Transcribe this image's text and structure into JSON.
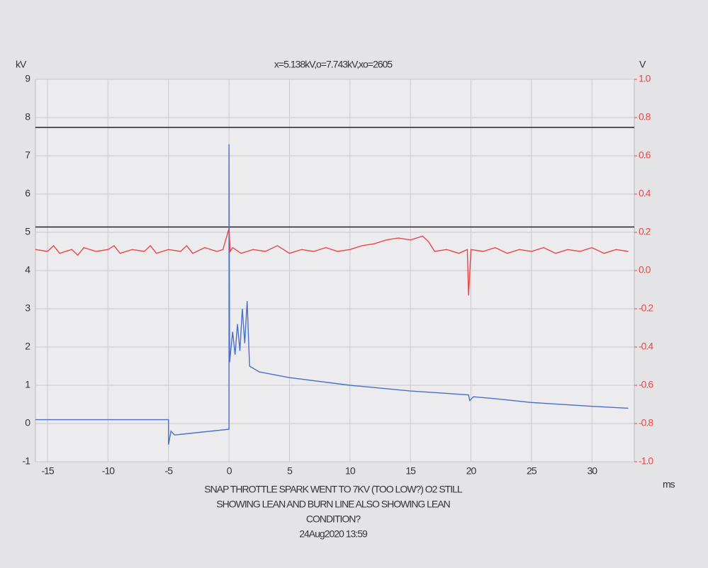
{
  "chart_data": {
    "type": "line",
    "title": "x=5.138kV,o=7.743kV,xo=2605",
    "x_axis_label": "ms",
    "y_axis_label": "kV",
    "y2_axis_label": "V",
    "notes": [
      "SNAP THROTTLE SPARK WENT TO 7KV (TOO LOW?) O2 STILL",
      "SHOWING LEAN AND BURN LINE ALSO SHOWING LEAN",
      "CONDITION?",
      "24Aug2020 13:59"
    ],
    "xlim": [
      -16,
      33.5
    ],
    "xticks": [
      -15,
      -10,
      -5,
      0,
      5,
      10,
      15,
      20,
      25,
      30
    ],
    "ylim": [
      -1,
      9
    ],
    "yticks": [
      -1,
      0,
      1,
      2,
      3,
      4,
      5,
      6,
      7,
      8,
      9
    ],
    "y2lim": [
      -1,
      1
    ],
    "y2ticks": [
      {
        "value": -1,
        "label": "-1.0"
      },
      -0.8,
      -0.6,
      -0.4,
      -0.2,
      {
        "value": 0,
        "label": "0.0"
      },
      0.2,
      0.4,
      0.6,
      0.8,
      {
        "value": 1,
        "label": "1.0"
      }
    ],
    "y2_color": "#e8474a",
    "grid": true,
    "cursors": [
      7.743,
      5.138
    ],
    "cursor_color": "#222222",
    "series": [
      {
        "color": "#4a6fc9",
        "x": [
          -16,
          -5,
          -5,
          -4.8,
          -4.5,
          0,
          0,
          0.05,
          0.3,
          0.5,
          0.7,
          0.9,
          1.1,
          1.3,
          1.5,
          1.7,
          2.5,
          5,
          10,
          15,
          19.8,
          19.9,
          20.2,
          22,
          25,
          30,
          33
        ],
        "values": [
          0.1,
          0.1,
          -0.55,
          -0.2,
          -0.3,
          -0.15,
          7.3,
          1.6,
          2.4,
          1.8,
          2.6,
          1.9,
          3.0,
          2.1,
          3.2,
          1.5,
          1.35,
          1.2,
          1.0,
          0.85,
          0.75,
          0.6,
          0.7,
          0.65,
          0.55,
          0.45,
          0.4
        ]
      },
      {
        "color": "#e8474a",
        "axis": "y2",
        "x": [
          -16,
          -15,
          -14.5,
          -14,
          -13,
          -12.5,
          -12,
          -11,
          -10,
          -9.5,
          -9,
          -8,
          -7,
          -6.5,
          -6,
          -5,
          -4,
          -3.5,
          -3,
          -2,
          -1,
          -0.5,
          0,
          0.1,
          0.3,
          1,
          2,
          3,
          4,
          5,
          6,
          7,
          8,
          9,
          10,
          11,
          12,
          13,
          14,
          15,
          16,
          16.5,
          17,
          18,
          19,
          19.7,
          19.8,
          20,
          21,
          22,
          23,
          24,
          25,
          26,
          27,
          28,
          29,
          30,
          31,
          32,
          33
        ],
        "values": [
          0.11,
          0.1,
          0.13,
          0.09,
          0.11,
          0.08,
          0.12,
          0.1,
          0.11,
          0.13,
          0.09,
          0.11,
          0.1,
          0.13,
          0.09,
          0.11,
          0.1,
          0.13,
          0.09,
          0.12,
          0.1,
          0.11,
          0.22,
          0.1,
          0.12,
          0.09,
          0.11,
          0.1,
          0.13,
          0.09,
          0.11,
          0.1,
          0.12,
          0.1,
          0.11,
          0.13,
          0.14,
          0.16,
          0.17,
          0.16,
          0.18,
          0.15,
          0.1,
          0.11,
          0.09,
          0.11,
          -0.13,
          0.11,
          0.1,
          0.12,
          0.09,
          0.11,
          0.1,
          0.12,
          0.09,
          0.11,
          0.1,
          0.12,
          0.09,
          0.11,
          0.1
        ]
      }
    ]
  }
}
